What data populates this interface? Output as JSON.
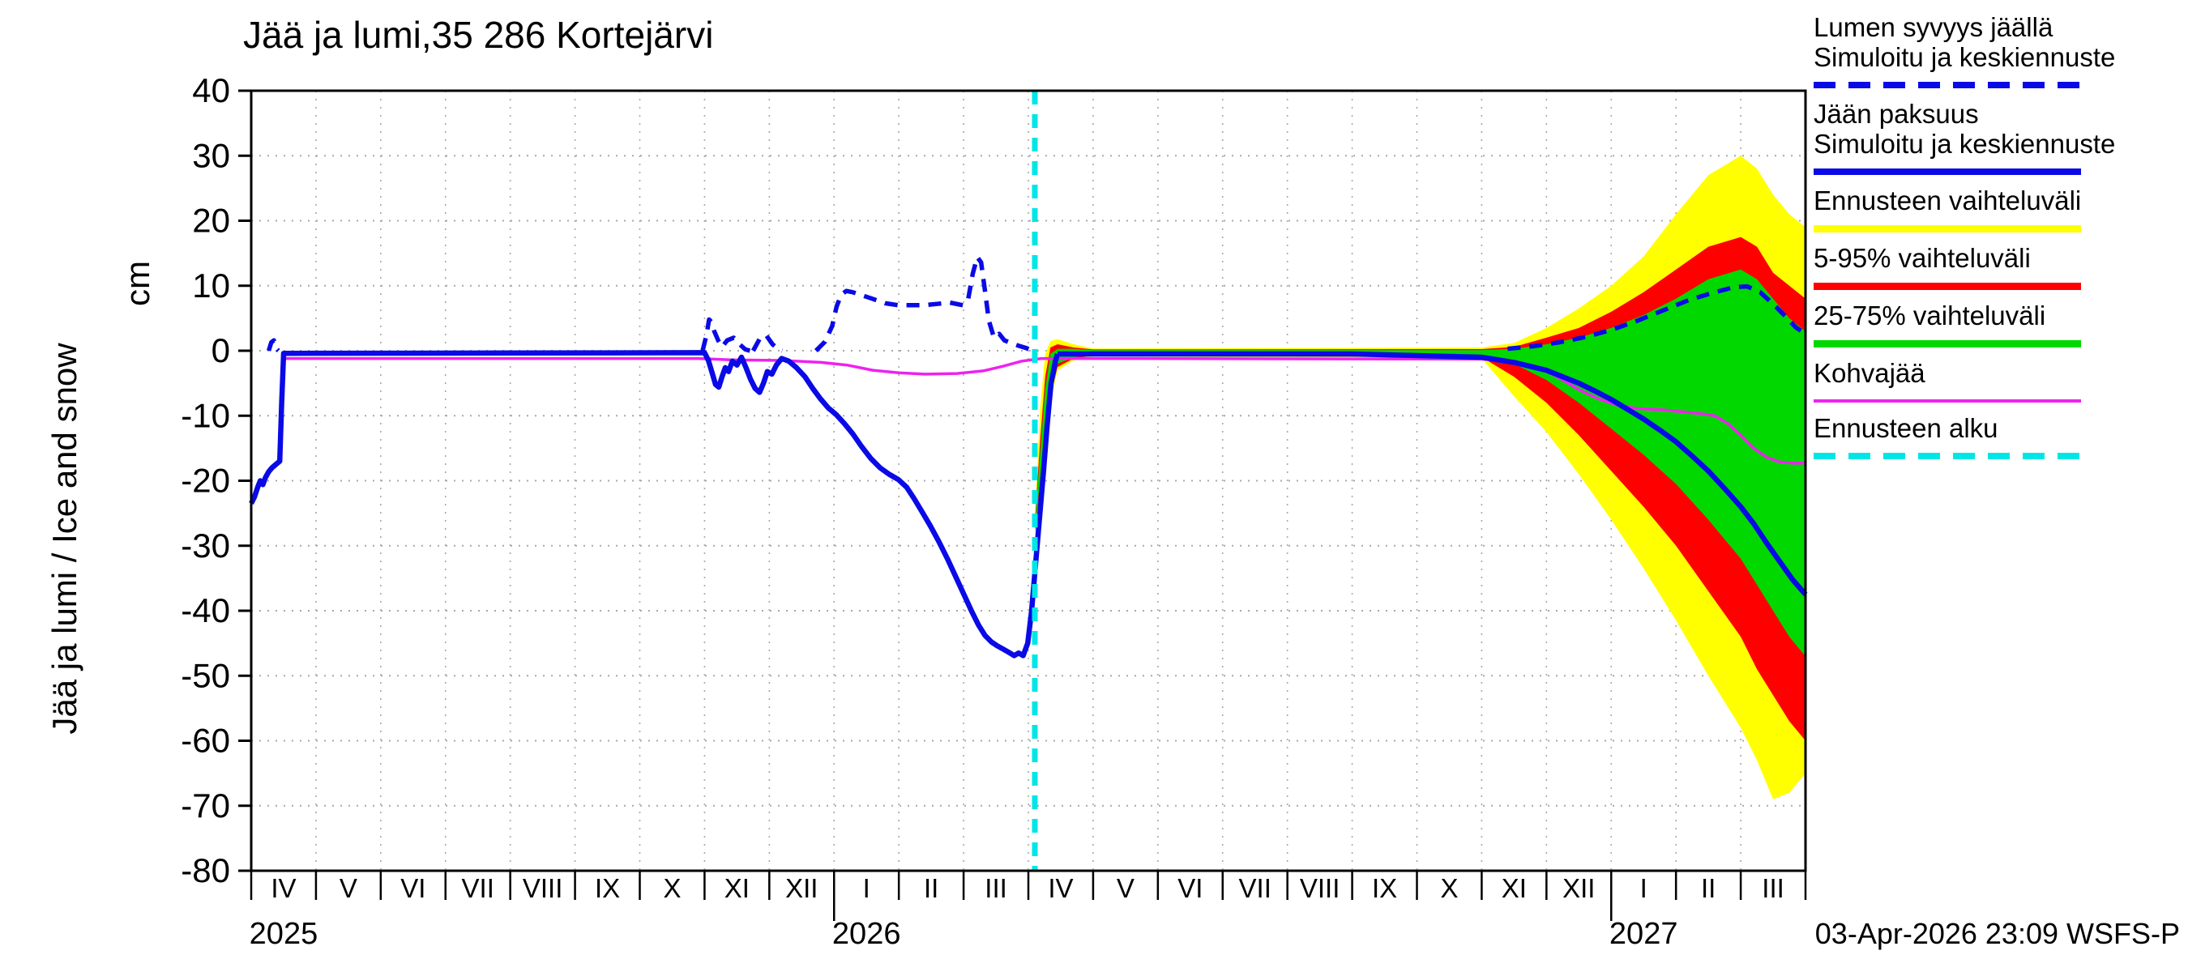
{
  "chart_data": {
    "type": "line",
    "title": "Jää ja lumi,35 286 Kortejärvi",
    "ylabel": "Jää ja lumi / Ice and snow",
    "ylabel_unit": "cm",
    "ylim": [
      -80,
      40
    ],
    "yticks": [
      40,
      30,
      20,
      10,
      0,
      -10,
      -20,
      -30,
      -40,
      -50,
      -60,
      -70,
      -80
    ],
    "x_months": [
      "IV",
      "V",
      "VI",
      "VII",
      "VIII",
      "IX",
      "X",
      "XI",
      "XII",
      "I",
      "II",
      "III",
      "IV",
      "V",
      "VI",
      "VII",
      "VIII",
      "IX",
      "X",
      "XI",
      "XII",
      "I",
      "II",
      "III"
    ],
    "years": [
      {
        "label": "2025",
        "month_index": 0
      },
      {
        "label": "2026",
        "month_index": 9
      },
      {
        "label": "2027",
        "month_index": 21
      }
    ],
    "forecast_start_x": 12.1,
    "colors": {
      "blue": "#0a0ae6",
      "yellow": "#ffff00",
      "red": "#ff0000",
      "green": "#00d800",
      "magenta": "#ee22ee",
      "cyan": "#00e6e6",
      "grid": "#a8a8a8",
      "frame": "#000000"
    },
    "series": {
      "ice_history": [
        [
          0.0,
          -23.5
        ],
        [
          0.05,
          -22.5
        ],
        [
          0.1,
          -21.0
        ],
        [
          0.14,
          -20.0
        ],
        [
          0.18,
          -20.6
        ],
        [
          0.22,
          -19.5
        ],
        [
          0.27,
          -18.6
        ],
        [
          0.32,
          -18.0
        ],
        [
          0.38,
          -17.5
        ],
        [
          0.44,
          -17.0
        ],
        [
          0.47,
          -8.0
        ],
        [
          0.5,
          -0.4
        ],
        [
          7.0,
          -0.3
        ],
        [
          7.06,
          -1.5
        ],
        [
          7.12,
          -3.5
        ],
        [
          7.17,
          -5.2
        ],
        [
          7.22,
          -5.6
        ],
        [
          7.27,
          -4.0
        ],
        [
          7.32,
          -2.6
        ],
        [
          7.37,
          -3.2
        ],
        [
          7.43,
          -1.6
        ],
        [
          7.5,
          -2.2
        ],
        [
          7.57,
          -1.0
        ],
        [
          7.64,
          -2.6
        ],
        [
          7.71,
          -4.4
        ],
        [
          7.78,
          -5.8
        ],
        [
          7.85,
          -6.4
        ],
        [
          7.91,
          -5.0
        ],
        [
          7.97,
          -3.2
        ],
        [
          8.04,
          -3.6
        ],
        [
          8.11,
          -2.2
        ],
        [
          8.19,
          -1.2
        ],
        [
          8.3,
          -1.6
        ],
        [
          8.42,
          -2.6
        ],
        [
          8.55,
          -4.0
        ],
        [
          8.67,
          -5.8
        ],
        [
          8.79,
          -7.4
        ],
        [
          8.91,
          -8.8
        ],
        [
          9.03,
          -9.8
        ],
        [
          9.16,
          -11.2
        ],
        [
          9.29,
          -12.8
        ],
        [
          9.43,
          -14.8
        ],
        [
          9.57,
          -16.6
        ],
        [
          9.71,
          -18.0
        ],
        [
          9.85,
          -19.0
        ],
        [
          9.99,
          -19.8
        ],
        [
          10.12,
          -21.0
        ],
        [
          10.24,
          -22.8
        ],
        [
          10.36,
          -24.8
        ],
        [
          10.49,
          -27.0
        ],
        [
          10.62,
          -29.4
        ],
        [
          10.75,
          -32.0
        ],
        [
          10.88,
          -34.8
        ],
        [
          11.0,
          -37.4
        ],
        [
          11.12,
          -40.0
        ],
        [
          11.23,
          -42.2
        ],
        [
          11.33,
          -43.8
        ],
        [
          11.43,
          -44.8
        ],
        [
          11.52,
          -45.4
        ],
        [
          11.61,
          -45.9
        ],
        [
          11.7,
          -46.4
        ],
        [
          11.78,
          -46.9
        ],
        [
          11.85,
          -46.5
        ],
        [
          11.92,
          -46.9
        ],
        [
          11.99,
          -45.0
        ],
        [
          12.05,
          -40.0
        ],
        [
          12.11,
          -33.0
        ],
        [
          12.17,
          -26.0
        ],
        [
          12.23,
          -19.0
        ],
        [
          12.29,
          -11.5
        ],
        [
          12.35,
          -5.0
        ],
        [
          12.42,
          -1.5
        ],
        [
          12.45,
          -0.5
        ]
      ],
      "snow_history_segments": [
        [
          [
            0.27,
            0.0
          ],
          [
            0.31,
            1.3
          ],
          [
            0.35,
            1.6
          ],
          [
            0.39,
            0.3
          ],
          [
            0.42,
            0.0
          ]
        ],
        [
          [
            6.97,
            0.0
          ],
          [
            7.03,
            2.4
          ],
          [
            7.07,
            4.8
          ],
          [
            7.11,
            4.4
          ],
          [
            7.15,
            3.0
          ],
          [
            7.21,
            1.6
          ],
          [
            7.27,
            0.6
          ],
          [
            7.35,
            1.6
          ],
          [
            7.45,
            2.0
          ],
          [
            7.54,
            1.0
          ],
          [
            7.63,
            0.2
          ],
          [
            7.7,
            0.0
          ]
        ],
        [
          [
            7.75,
            0.0
          ],
          [
            7.85,
            1.8
          ],
          [
            7.95,
            2.4
          ],
          [
            8.05,
            1.0
          ],
          [
            8.14,
            0.2
          ],
          [
            8.2,
            0.0
          ]
        ],
        [
          [
            8.72,
            0.0
          ],
          [
            8.86,
            1.4
          ],
          [
            8.97,
            3.8
          ],
          [
            9.04,
            6.8
          ],
          [
            9.11,
            8.6
          ],
          [
            9.19,
            9.2
          ],
          [
            9.29,
            9.0
          ],
          [
            9.44,
            8.5
          ],
          [
            9.59,
            8.0
          ],
          [
            9.79,
            7.3
          ],
          [
            9.99,
            7.0
          ],
          [
            10.19,
            7.0
          ],
          [
            10.39,
            7.0
          ],
          [
            10.59,
            7.2
          ],
          [
            10.79,
            7.4
          ],
          [
            10.99,
            7.0
          ],
          [
            11.07,
            7.9
          ],
          [
            11.14,
            11.8
          ],
          [
            11.21,
            14.4
          ],
          [
            11.27,
            13.6
          ],
          [
            11.33,
            9.2
          ],
          [
            11.39,
            4.6
          ],
          [
            11.47,
            2.0
          ],
          [
            11.55,
            2.6
          ],
          [
            11.63,
            1.6
          ],
          [
            11.73,
            1.2
          ],
          [
            11.84,
            0.8
          ],
          [
            11.97,
            0.4
          ],
          [
            12.06,
            0.0
          ]
        ]
      ],
      "ice_forecast": [
        [
          12.45,
          -0.5
        ],
        [
          13.5,
          -0.5
        ],
        [
          15.0,
          -0.5
        ],
        [
          17.0,
          -0.5
        ],
        [
          19.0,
          -1.0
        ],
        [
          19.25,
          -1.4
        ],
        [
          19.5,
          -1.8
        ],
        [
          19.75,
          -2.4
        ],
        [
          20.0,
          -3.0
        ],
        [
          20.25,
          -4.0
        ],
        [
          20.5,
          -5.0
        ],
        [
          20.75,
          -6.2
        ],
        [
          21.0,
          -7.5
        ],
        [
          21.25,
          -9.0
        ],
        [
          21.5,
          -10.5
        ],
        [
          21.75,
          -12.2
        ],
        [
          22.0,
          -14.0
        ],
        [
          22.25,
          -16.2
        ],
        [
          22.5,
          -18.5
        ],
        [
          22.75,
          -21.2
        ],
        [
          23.0,
          -24.0
        ],
        [
          23.2,
          -26.6
        ],
        [
          23.4,
          -29.6
        ],
        [
          23.6,
          -32.4
        ],
        [
          23.8,
          -35.2
        ],
        [
          24.0,
          -37.5
        ]
      ],
      "snow_forecast": [
        [
          19.4,
          0.3
        ],
        [
          19.8,
          0.7
        ],
        [
          20.2,
          1.3
        ],
        [
          20.6,
          2.1
        ],
        [
          21.0,
          3.2
        ],
        [
          21.4,
          4.6
        ],
        [
          21.8,
          6.2
        ],
        [
          22.2,
          7.8
        ],
        [
          22.6,
          9.0
        ],
        [
          22.9,
          9.8
        ],
        [
          23.1,
          9.9
        ],
        [
          23.3,
          9.0
        ],
        [
          23.5,
          7.2
        ],
        [
          23.7,
          5.2
        ],
        [
          23.85,
          3.6
        ],
        [
          24.0,
          2.6
        ]
      ],
      "kohvajaa": [
        [
          0.52,
          -1.2
        ],
        [
          6.9,
          -1.2
        ],
        [
          7.4,
          -1.4
        ],
        [
          8.2,
          -1.5
        ],
        [
          8.8,
          -1.8
        ],
        [
          9.2,
          -2.2
        ],
        [
          9.6,
          -3.0
        ],
        [
          10.0,
          -3.4
        ],
        [
          10.4,
          -3.6
        ],
        [
          10.9,
          -3.5
        ],
        [
          11.3,
          -3.1
        ],
        [
          11.6,
          -2.4
        ],
        [
          11.9,
          -1.6
        ],
        [
          12.2,
          -1.2
        ],
        [
          13.5,
          -1.2
        ],
        [
          19.0,
          -1.3
        ],
        [
          19.5,
          -1.7
        ],
        [
          19.9,
          -2.6
        ],
        [
          20.2,
          -4.2
        ],
        [
          20.5,
          -6.0
        ],
        [
          20.8,
          -7.4
        ],
        [
          21.1,
          -8.4
        ],
        [
          21.4,
          -8.9
        ],
        [
          21.8,
          -9.1
        ],
        [
          22.1,
          -9.4
        ],
        [
          22.4,
          -9.7
        ],
        [
          22.6,
          -10.0
        ],
        [
          22.8,
          -11.2
        ],
        [
          23.0,
          -13.0
        ],
        [
          23.2,
          -15.0
        ],
        [
          23.4,
          -16.4
        ],
        [
          23.6,
          -17.1
        ],
        [
          23.8,
          -17.3
        ],
        [
          24.0,
          -17.3
        ]
      ]
    },
    "bands": {
      "x": [
        12.1,
        12.18,
        12.26,
        12.34,
        12.45,
        12.7,
        13.0,
        19.0,
        19.5,
        20.0,
        20.5,
        21.0,
        21.5,
        22.0,
        22.5,
        23.0,
        23.25,
        23.5,
        23.75,
        24.0
      ],
      "yellow": {
        "low": [
          -28.0,
          -22.0,
          -15.0,
          -8.0,
          -3.0,
          -1.5,
          -0.9,
          -1.2,
          -7.0,
          -12.5,
          -19.0,
          -26.0,
          -33.5,
          -41.5,
          -50.0,
          -58.0,
          -63.0,
          -69.0,
          -68.0,
          -65.0
        ],
        "high": [
          -26.0,
          -9.0,
          -0.5,
          1.5,
          1.8,
          1.0,
          0.35,
          0.5,
          1.2,
          3.5,
          6.5,
          10.0,
          14.5,
          21.0,
          27.0,
          30.0,
          28.0,
          24.0,
          21.0,
          19.0
        ]
      },
      "red": {
        "low": [
          -27.7,
          -21.0,
          -13.5,
          -7.0,
          -2.5,
          -1.2,
          -0.75,
          -1.0,
          -4.0,
          -8.0,
          -13.0,
          -18.5,
          -24.0,
          -30.0,
          -37.0,
          -44.0,
          -49.0,
          -53.0,
          -57.0,
          -60.0
        ],
        "high": [
          -26.3,
          -14.0,
          -4.0,
          0.5,
          1.0,
          0.5,
          0.2,
          0.25,
          0.6,
          2.0,
          3.5,
          6.0,
          9.0,
          12.5,
          16.0,
          17.5,
          16.0,
          12.0,
          10.0,
          8.0
        ]
      },
      "green": {
        "low": [
          -27.4,
          -20.0,
          -12.5,
          -6.0,
          -2.0,
          -1.0,
          -0.6,
          -0.8,
          -2.0,
          -4.5,
          -8.0,
          -12.0,
          -16.0,
          -20.5,
          -26.0,
          -32.0,
          -36.0,
          -40.0,
          -44.0,
          -47.0
        ],
        "high": [
          -26.6,
          -16.0,
          -6.0,
          -0.5,
          0.3,
          0.3,
          0.1,
          0.1,
          0.3,
          1.0,
          2.0,
          3.5,
          5.5,
          8.0,
          11.0,
          12.5,
          11.0,
          8.0,
          5.0,
          3.0
        ]
      }
    }
  },
  "legend": {
    "items": [
      {
        "line1": "Lumen syvyys jäällä",
        "line2": "Simuloitu ja keskiennuste",
        "style": "blue-dashed"
      },
      {
        "line1": "Jään paksuus",
        "line2": "Simuloitu ja keskiennuste",
        "style": "blue-solid"
      },
      {
        "line1": "Ennusteen vaihteluväli",
        "style": "yellow"
      },
      {
        "line1": "5-95% vaihteluväli",
        "style": "red"
      },
      {
        "line1": "25-75% vaihteluväli",
        "style": "green"
      },
      {
        "line1": "Kohvajää",
        "style": "magenta"
      },
      {
        "line1": "Ennusteen alku",
        "style": "cyan-dashed"
      }
    ]
  },
  "footer": {
    "timestamp": "03-Apr-2026 23:09 WSFS-P"
  }
}
